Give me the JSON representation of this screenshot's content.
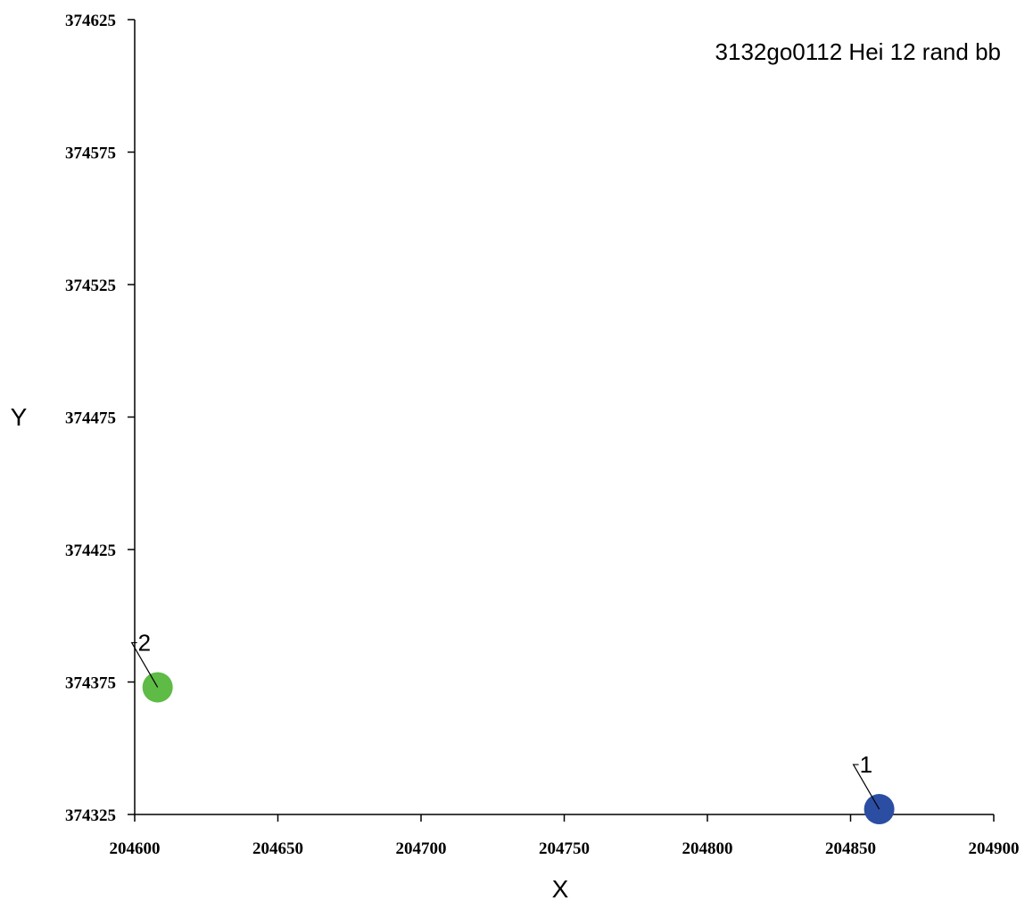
{
  "chart_data": {
    "type": "scatter",
    "title": "3132go0112 Hei 12 rand bb",
    "xlabel": "X",
    "ylabel": "Y",
    "xlim": [
      204600,
      204900
    ],
    "ylim": [
      374325,
      374625
    ],
    "x_ticks": [
      "204600",
      "204650",
      "204700",
      "204750",
      "204800",
      "204850",
      "204900"
    ],
    "y_ticks": [
      "374625",
      "374575",
      "374525",
      "374475",
      "374425",
      "374375",
      "374325"
    ],
    "grid": false,
    "points": [
      {
        "label": "1",
        "x": 204860,
        "y": 374327,
        "color": "#2b4ea3"
      },
      {
        "label": "2",
        "x": 204608,
        "y": 374373,
        "color": "#5dbb46"
      }
    ]
  }
}
